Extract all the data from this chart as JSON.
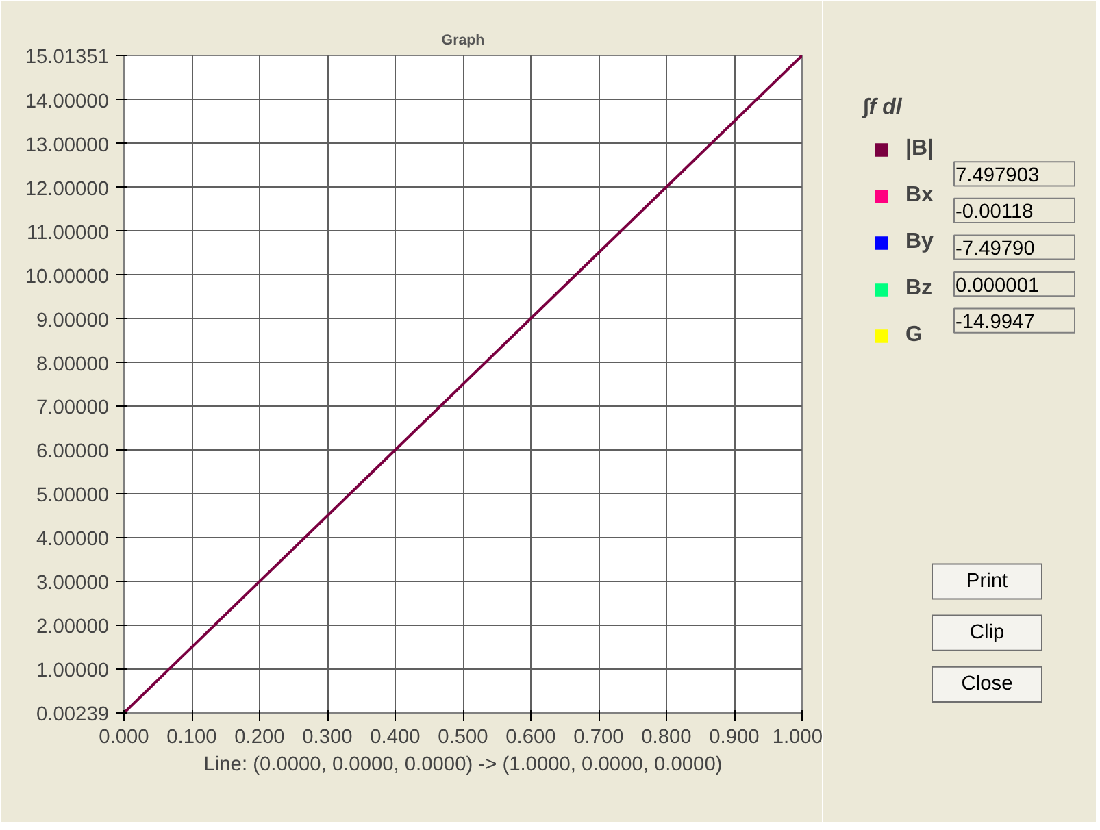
{
  "chart_data": {
    "type": "line",
    "title": "Graph",
    "xlabel": "Line: (0.0000, 0.0000, 0.0000) -> (1.0000, 0.0000, 0.0000)",
    "legend_title": "∫f dl",
    "x": [
      0,
      1
    ],
    "series": [
      {
        "name": "|B|",
        "color": "#7a0040",
        "values": [
          0.00239,
          15.01351
        ]
      },
      {
        "name": "Bx",
        "color": "#ff0080",
        "values": [
          null,
          null
        ]
      },
      {
        "name": "By",
        "color": "#0000ff",
        "values": [
          null,
          null
        ]
      },
      {
        "name": "Bz",
        "color": "#00ff80",
        "values": [
          null,
          null
        ]
      },
      {
        "name": "G",
        "color": "#ffff00",
        "values": [
          null,
          null
        ]
      }
    ],
    "annotations": [
      "7.497903",
      "-0.00118",
      "-7.49790",
      "0.000001",
      "-14.9947",
      "Print",
      "Clip",
      "Close"
    ],
    "xlim": [
      0,
      1
    ],
    "xticks": [
      {
        "value": 0,
        "label": "0.000"
      },
      {
        "value": 0.1,
        "label": "0.100"
      },
      {
        "value": 0.2,
        "label": "0.200"
      },
      {
        "value": 0.3,
        "label": "0.300"
      },
      {
        "value": 0.4,
        "label": "0.400"
      },
      {
        "value": 0.5,
        "label": "0.500"
      },
      {
        "value": 0.6,
        "label": "0.600"
      },
      {
        "value": 0.7,
        "label": "0.700"
      },
      {
        "value": 0.8,
        "label": "0.800"
      },
      {
        "value": 0.9,
        "label": "0.900"
      },
      {
        "value": 1,
        "label": "1.000"
      }
    ],
    "ylim": [
      0.00239,
      15.01351
    ],
    "yticks": [
      0.00239,
      {
        "value": 1,
        "label": "1.00000"
      },
      {
        "value": 2,
        "label": "2.00000"
      },
      {
        "value": 3,
        "label": "3.00000"
      },
      {
        "value": 4,
        "label": "4.00000"
      },
      {
        "value": 5,
        "label": "5.00000"
      },
      {
        "value": 6,
        "label": "6.00000"
      },
      {
        "value": 7,
        "label": "7.00000"
      },
      {
        "value": 8,
        "label": "8.00000"
      },
      {
        "value": 9,
        "label": "9.00000"
      },
      {
        "value": 10,
        "label": "10.00000"
      },
      {
        "value": 11,
        "label": "11.00000"
      },
      {
        "value": 12,
        "label": "12.00000"
      },
      {
        "value": 13,
        "label": "13.00000"
      },
      {
        "value": 14,
        "label": "14.00000"
      },
      15.01351
    ],
    "grid": true,
    "legend": "right",
    "line_style": "solid"
  }
}
